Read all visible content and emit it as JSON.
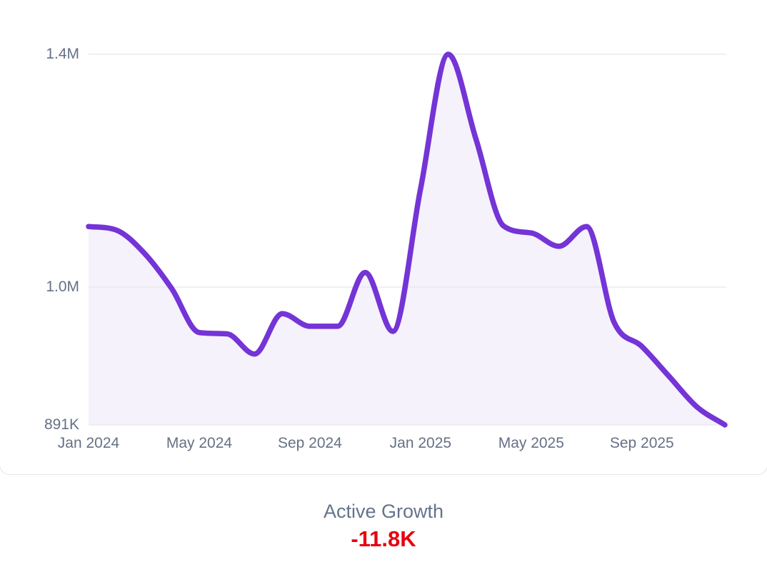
{
  "chart_data": {
    "type": "area",
    "title": "",
    "x": [
      "Jan 2024",
      "Feb 2024",
      "Mar 2024",
      "Apr 2024",
      "May 2024",
      "Jun 2024",
      "Jul 2024",
      "Aug 2024",
      "Sep 2024",
      "Oct 2024",
      "Nov 2024",
      "Dec 2024",
      "Jan 2025",
      "Feb 2025",
      "Mar 2025",
      "Apr 2025",
      "May 2025",
      "Jun 2025",
      "Jul 2025",
      "Aug 2025",
      "Sep 2025",
      "Oct 2025",
      "Nov 2025",
      "Dec 2025"
    ],
    "values_thousands": [
      1104,
      1098,
      1059,
      999,
      964,
      963,
      947,
      979,
      969,
      969,
      1025,
      965,
      1169,
      1400,
      1255,
      1105,
      1093,
      1070,
      1104,
      972,
      953,
      929,
      905,
      891
    ],
    "y_ticks": [
      {
        "label": "1.4M",
        "value_thousands": 1400
      },
      {
        "label": "1.0M",
        "value_thousands": 1000
      },
      {
        "label": "891K",
        "value_thousands": 891
      }
    ],
    "x_ticks": [
      {
        "label": "Jan 2024",
        "month_index": 0
      },
      {
        "label": "May 2024",
        "month_index": 4
      },
      {
        "label": "Sep 2024",
        "month_index": 8
      },
      {
        "label": "Jan 2025",
        "month_index": 12
      },
      {
        "label": "May 2025",
        "month_index": 16
      },
      {
        "label": "Sep 2025",
        "month_index": 20
      }
    ],
    "ylim_thousands": [
      891,
      1400
    ],
    "grid": "horizontal",
    "legend": "none",
    "smoothing": "monotone"
  },
  "footer": {
    "label": "Active Growth",
    "value": "-11.8K"
  },
  "colors": {
    "line": "#7434d6",
    "fill": "#f5f2fb",
    "grid": "#e7e7eb",
    "axis_text": "#667085",
    "footer_label": "#64748b",
    "footer_value": "#e8000f",
    "card_border": "#e4e4e8"
  }
}
